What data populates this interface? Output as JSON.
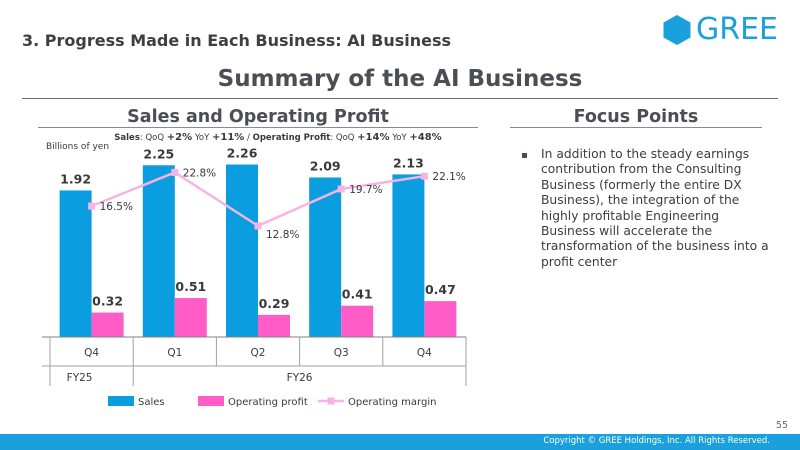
{
  "header": {
    "section_title": "3. Progress Made in Each Business: AI Business",
    "logo_text": "GREE",
    "main_title": "Summary of the AI Business"
  },
  "left_panel": {
    "title": "Sales and Operating Profit",
    "growth": {
      "sales_label": "Sales",
      "qoq_label": "QoQ",
      "sales_qoq": "+2%",
      "yoy_label": "YoY",
      "sales_yoy": "+11%",
      "separator": " / ",
      "op_label": "Operating Profit",
      "op_qoq": "+14%",
      "op_yoy": "+48%"
    },
    "unit": "Billions of yen"
  },
  "right_panel": {
    "title": "Focus Points",
    "bullets": [
      "In addition to the steady earnings contribution from the Consulting Business (formerly the entire DX Business), the integration of the highly profitable Engineering Business will accelerate the transformation of the business into a profit center"
    ]
  },
  "chart_data": {
    "type": "bar",
    "categories": [
      "Q4",
      "Q1",
      "Q2",
      "Q3",
      "Q4"
    ],
    "fiscal_years": [
      {
        "label": "FY25",
        "span": [
          0,
          0
        ]
      },
      {
        "label": "FY26",
        "span": [
          1,
          4
        ]
      }
    ],
    "series": [
      {
        "name": "Sales",
        "type": "bar",
        "color": "#0a9ee0",
        "values": [
          1.92,
          2.25,
          2.26,
          2.09,
          2.13
        ],
        "labels": [
          "1.92",
          "2.25",
          "2.26",
          "2.09",
          "2.13"
        ]
      },
      {
        "name": "Operating profit",
        "type": "bar",
        "color": "#ff5cc8",
        "values": [
          0.32,
          0.51,
          0.29,
          0.41,
          0.47
        ],
        "labels": [
          "0.32",
          "0.51",
          "0.29",
          "0.41",
          "0.47"
        ]
      },
      {
        "name": "Operating margin",
        "type": "line",
        "color": "#f7b3e6",
        "values": [
          16.5,
          22.8,
          12.8,
          19.7,
          22.1
        ],
        "labels": [
          "16.5%",
          "22.8%",
          "12.8%",
          "19.7%",
          "22.1%"
        ]
      }
    ],
    "ylim": [
      0,
      2.45
    ],
    "margin_ylim": [
      -8,
      27
    ],
    "legend_position": "bottom"
  },
  "footer": {
    "page_number": "55",
    "copyright": "Copyright © GREE Holdings, Inc. All Rights Reserved."
  }
}
